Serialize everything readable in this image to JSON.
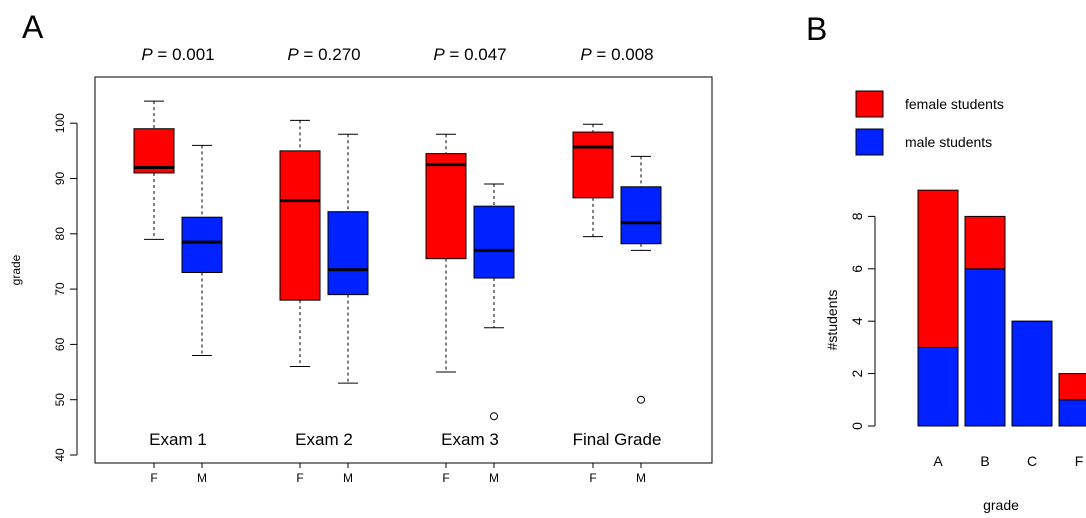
{
  "colors": {
    "female": "#ff0000",
    "male": "#0022ff"
  },
  "panel_a": {
    "letter": "A",
    "chart_data": {
      "type": "box",
      "ylabel": "grade",
      "ylim": [
        37,
        111
      ],
      "yticks": [
        "40",
        "50",
        "60",
        "70",
        "80",
        "90",
        "100"
      ],
      "groups": [
        {
          "label": "Exam 1",
          "p_prefix": "P",
          "p_value": " = 0.001",
          "boxes": [
            {
              "tick": "F",
              "color": "female",
              "min": 79,
              "q1": 91,
              "median": 92,
              "q3": 99,
              "max": 104,
              "outliers": []
            },
            {
              "tick": "M",
              "color": "male",
              "min": 58,
              "q1": 73,
              "median": 78.5,
              "q3": 83,
              "max": 96,
              "outliers": []
            }
          ]
        },
        {
          "label": "Exam 2",
          "p_prefix": "P",
          "p_value": " = 0.270",
          "boxes": [
            {
              "tick": "F",
              "color": "female",
              "min": 56,
              "q1": 68,
              "median": 86,
              "q3": 95,
              "max": 100.5,
              "outliers": []
            },
            {
              "tick": "M",
              "color": "male",
              "min": 53,
              "q1": 69,
              "median": 73.5,
              "q3": 84,
              "max": 98,
              "outliers": []
            }
          ]
        },
        {
          "label": "Exam 3",
          "p_prefix": "P",
          "p_value": " = 0.047",
          "boxes": [
            {
              "tick": "F",
              "color": "female",
              "min": 55,
              "q1": 75.5,
              "median": 92.5,
              "q3": 94.5,
              "max": 98,
              "outliers": []
            },
            {
              "tick": "M",
              "color": "male",
              "min": 63,
              "q1": 72,
              "median": 77,
              "q3": 85,
              "max": 89,
              "outliers": [
                47
              ]
            }
          ]
        },
        {
          "label": "Final Grade",
          "p_prefix": "P",
          "p_value": " = 0.008",
          "boxes": [
            {
              "tick": "F",
              "color": "female",
              "min": 79.5,
              "q1": 86.5,
              "median": 95.7,
              "q3": 98.4,
              "max": 99.8,
              "outliers": []
            },
            {
              "tick": "M",
              "color": "male",
              "min": 77,
              "q1": 78.2,
              "median": 82,
              "q3": 88.5,
              "max": 94,
              "outliers": [
                50
              ]
            }
          ]
        }
      ]
    }
  },
  "panel_b": {
    "letter": "B",
    "legend": [
      {
        "label": "female students",
        "color": "female"
      },
      {
        "label": "male students",
        "color": "male"
      }
    ],
    "chart_data": {
      "type": "bar",
      "stacked": true,
      "xlabel": "grade",
      "ylabel": "#students",
      "ylim": [
        0,
        9
      ],
      "yticks": [
        "0",
        "2",
        "4",
        "6",
        "8"
      ],
      "categories": [
        "A",
        "B",
        "C",
        "F"
      ],
      "series": [
        {
          "name": "male students",
          "color": "male",
          "values": [
            3,
            6,
            4,
            1
          ]
        },
        {
          "name": "female students",
          "color": "female",
          "values": [
            6,
            2,
            0,
            1
          ]
        }
      ]
    }
  }
}
